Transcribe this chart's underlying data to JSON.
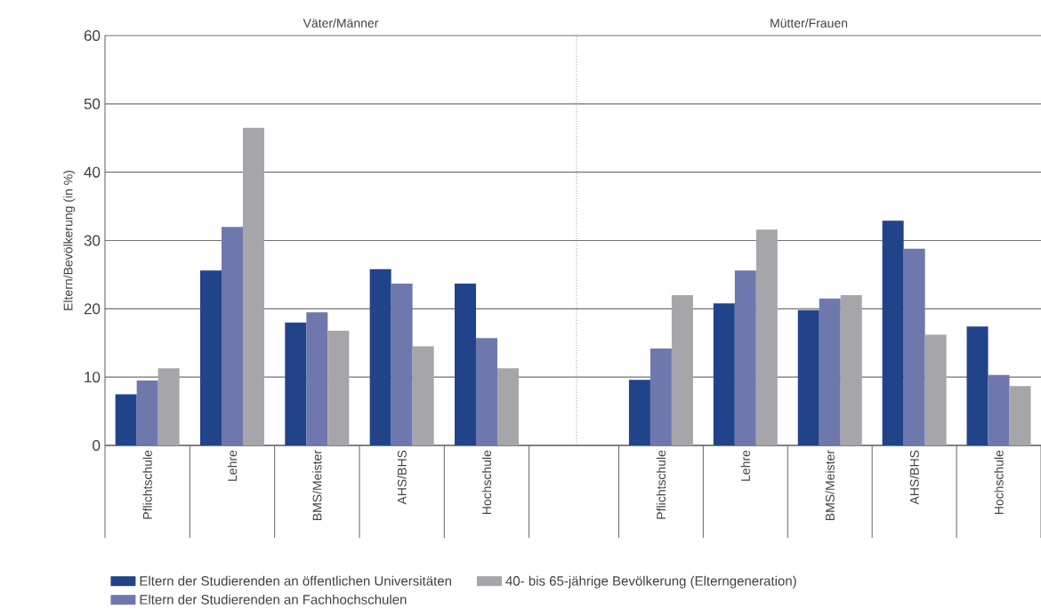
{
  "chart_data": [
    {
      "type": "bar",
      "title": "Väter/Männer",
      "ylabel": "Eltern/Bevölkerung (in %)",
      "categories": [
        "Pflichtschule",
        "Lehre",
        "BMS/Meister",
        "AHS/BHS",
        "Hochschule"
      ],
      "ylim": [
        0,
        60
      ],
      "yticks": [
        0,
        10,
        20,
        30,
        40,
        50,
        60
      ],
      "grid": "y",
      "legend": "bottom",
      "series": [
        {
          "name": "Eltern der Studierenden an öffentlichen Universitäten",
          "color": "#21438a",
          "values": [
            7.5,
            25.6,
            18,
            25.8,
            23.7
          ]
        },
        {
          "name": "Eltern der Studierenden an Fachhochschulen",
          "color": "#6f78ad",
          "values": [
            9.5,
            32,
            19.5,
            23.7,
            15.7
          ]
        },
        {
          "name": "40- bis 65-jährige Bevölkerung (Elterngeneration)",
          "color": "#a6a6aa",
          "values": [
            11.3,
            46.5,
            16.8,
            14.5,
            11.3
          ]
        }
      ]
    },
    {
      "type": "bar",
      "title": "Mütter/Frauen",
      "categories": [
        "Pflichtschule",
        "Lehre",
        "BMS/Meister",
        "AHS/BHS",
        "Hochschule"
      ],
      "ylim": [
        0,
        60
      ],
      "yticks": [
        0,
        10,
        20,
        30,
        40,
        50,
        60
      ],
      "grid": "y",
      "tick_labels": "x",
      "series": [
        {
          "color": "#21438a",
          "values": [
            9.6,
            20.8,
            19.8,
            32.9,
            17.4
          ]
        },
        {
          "color": "#6f78ad",
          "values": [
            14.2,
            25.6,
            21.5,
            28.8,
            10.3
          ]
        },
        {
          "color": "#a6a6aa",
          "values": [
            22,
            31.6,
            22,
            16.2,
            8.7
          ]
        }
      ]
    }
  ]
}
